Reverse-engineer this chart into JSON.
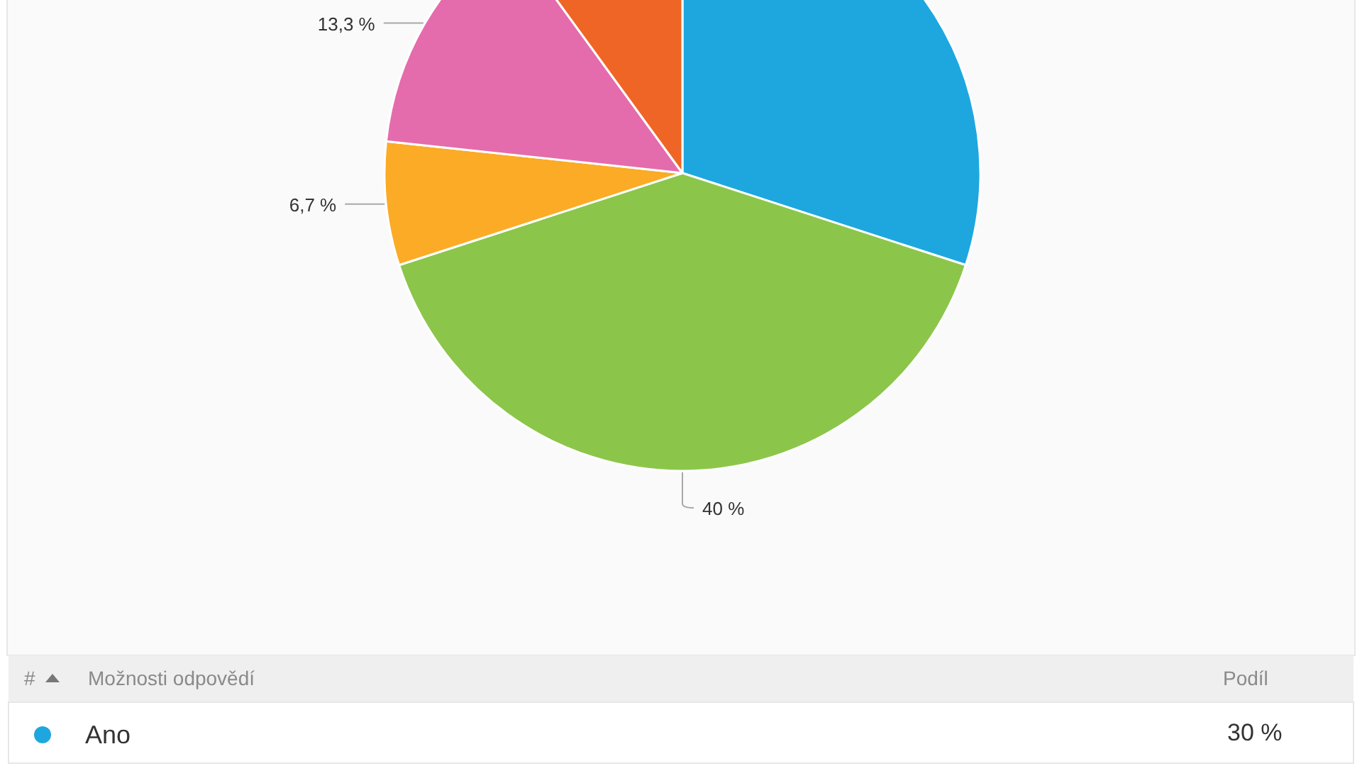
{
  "chart_data": {
    "type": "pie",
    "categories": [
      "Ano",
      null,
      null,
      null,
      null
    ],
    "values": [
      30,
      40,
      6.7,
      13.3,
      10
    ],
    "colors": [
      "#1ea7df",
      "#8bc64a",
      "#fbab25",
      "#e46cac",
      "#ef6526"
    ],
    "value_labels": [
      "30 %",
      "40 %",
      "6,7 %",
      "13,3 %",
      null
    ],
    "legend": "bottom",
    "annotations": [
      "#",
      "Možnosti odpovědí",
      "Podíl"
    ]
  }
}
